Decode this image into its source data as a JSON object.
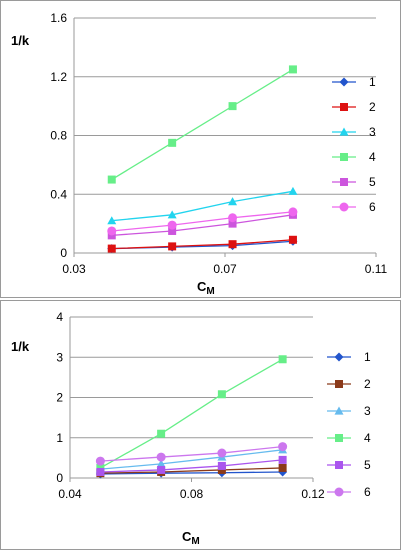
{
  "chart_data": [
    {
      "type": "line",
      "ylabel": "1/k",
      "xlabel_main": "C",
      "xlabel_sub": "M",
      "xlim": [
        0.03,
        0.11
      ],
      "ylim": [
        0,
        1.6
      ],
      "xticks": [
        "0.03",
        "0.07",
        "0.11"
      ],
      "xtick_values": [
        0.03,
        0.07,
        0.11
      ],
      "yticks": [
        "0",
        "0.4",
        "0.8",
        "1.2",
        "1.6"
      ],
      "ytick_values": [
        0,
        0.4,
        0.8,
        1.2,
        1.6
      ],
      "grid": "horizontal",
      "legend_position": "right",
      "series": [
        {
          "name": "1",
          "color": "#2255cc",
          "marker": "diamond",
          "x": [
            0.04,
            0.056,
            0.072,
            0.088
          ],
          "y": [
            0.03,
            0.04,
            0.05,
            0.08
          ]
        },
        {
          "name": "2",
          "color": "#dd1111",
          "marker": "square",
          "x": [
            0.04,
            0.056,
            0.072,
            0.088
          ],
          "y": [
            0.03,
            0.045,
            0.06,
            0.09
          ]
        },
        {
          "name": "3",
          "color": "#22d4ee",
          "marker": "triangle",
          "x": [
            0.04,
            0.056,
            0.072,
            0.088
          ],
          "y": [
            0.22,
            0.26,
            0.35,
            0.42
          ]
        },
        {
          "name": "4",
          "color": "#66ee88",
          "marker": "square",
          "x": [
            0.04,
            0.056,
            0.072,
            0.088
          ],
          "y": [
            0.5,
            0.75,
            1.0,
            1.25
          ]
        },
        {
          "name": "5",
          "color": "#cc55dd",
          "marker": "square",
          "x": [
            0.04,
            0.056,
            0.072,
            0.088
          ],
          "y": [
            0.12,
            0.15,
            0.2,
            0.26
          ]
        },
        {
          "name": "6",
          "color": "#ee66ee",
          "marker": "circle",
          "x": [
            0.04,
            0.056,
            0.072,
            0.088
          ],
          "y": [
            0.15,
            0.19,
            0.24,
            0.28
          ]
        }
      ]
    },
    {
      "type": "line",
      "ylabel": "1/k",
      "xlabel_main": "C",
      "xlabel_sub": "M",
      "xlim": [
        0.04,
        0.12
      ],
      "ylim": [
        0,
        4
      ],
      "xticks": [
        "0.04",
        "0.08",
        "0.12"
      ],
      "xtick_values": [
        0.04,
        0.08,
        0.12
      ],
      "yticks": [
        "0",
        "1",
        "2",
        "3",
        "4"
      ],
      "ytick_values": [
        0,
        1,
        2,
        3,
        4
      ],
      "grid": "horizontal",
      "legend_position": "right",
      "series": [
        {
          "name": "1",
          "color": "#2255cc",
          "marker": "diamond",
          "x": [
            0.05,
            0.07,
            0.09,
            0.11
          ],
          "y": [
            0.1,
            0.12,
            0.13,
            0.15
          ]
        },
        {
          "name": "2",
          "color": "#8b3a1a",
          "marker": "square",
          "x": [
            0.05,
            0.07,
            0.09,
            0.11
          ],
          "y": [
            0.12,
            0.15,
            0.2,
            0.25
          ]
        },
        {
          "name": "3",
          "color": "#66bbee",
          "marker": "triangle",
          "x": [
            0.05,
            0.07,
            0.09,
            0.11
          ],
          "y": [
            0.22,
            0.35,
            0.52,
            0.7
          ]
        },
        {
          "name": "4",
          "color": "#66ee88",
          "marker": "square",
          "x": [
            0.05,
            0.07,
            0.09,
            0.11
          ],
          "y": [
            0.25,
            1.1,
            2.08,
            2.95
          ]
        },
        {
          "name": "5",
          "color": "#aa55ee",
          "marker": "square",
          "x": [
            0.05,
            0.07,
            0.09,
            0.11
          ],
          "y": [
            0.15,
            0.2,
            0.3,
            0.45
          ]
        },
        {
          "name": "6",
          "color": "#cc77ee",
          "marker": "circle",
          "x": [
            0.05,
            0.07,
            0.09,
            0.11
          ],
          "y": [
            0.42,
            0.52,
            0.62,
            0.78
          ]
        }
      ]
    }
  ]
}
